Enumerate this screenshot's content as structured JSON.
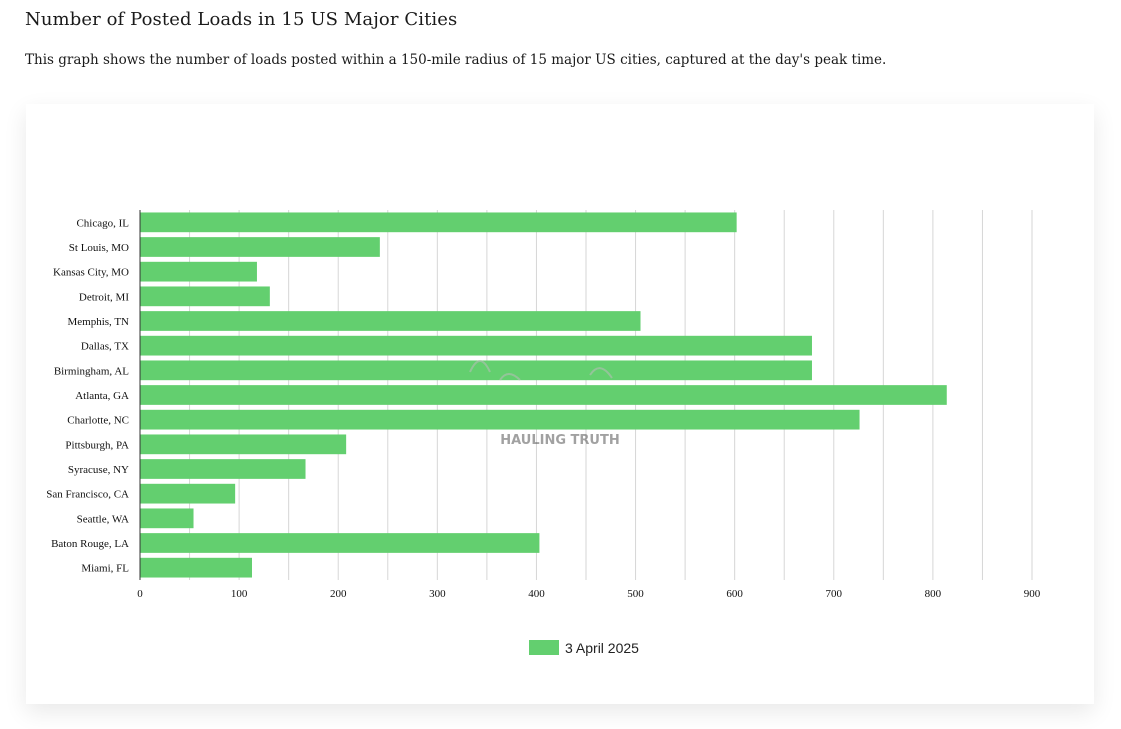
{
  "page": {
    "title": "Number of Posted Loads in 15 US Major Cities",
    "description": "This graph shows the number of loads posted within a 150-mile radius of 15 major US cities, captured at the day's peak time."
  },
  "watermark": {
    "text": "HAULING TRUTH"
  },
  "colors": {
    "bar": "#63cf6f",
    "grid": "#d6d6d6",
    "axis": "#333333"
  },
  "chart_data": {
    "type": "bar",
    "orientation": "horizontal",
    "categories": [
      "Chicago, IL",
      "St Louis, MO",
      "Kansas City, MO",
      "Detroit, MI",
      "Memphis, TN",
      "Dallas, TX",
      "Birmingham, AL",
      "Atlanta, GA",
      "Charlotte, NC",
      "Pittsburgh, PA",
      "Syracuse, NY",
      "San Francisco, CA",
      "Seattle, WA",
      "Baton Rouge, LA",
      "Miami, FL"
    ],
    "series": [
      {
        "name": "3 April 2025",
        "values": [
          602,
          242,
          118,
          131,
          505,
          678,
          678,
          814,
          726,
          208,
          167,
          96,
          54,
          403,
          113
        ]
      }
    ],
    "xlim": [
      0,
      900
    ],
    "xticks": [
      0,
      100,
      200,
      300,
      400,
      500,
      600,
      700,
      800,
      900
    ],
    "grid": "vertical, every 50",
    "legend": "bottom-center",
    "title": "",
    "xlabel": "",
    "ylabel": ""
  }
}
